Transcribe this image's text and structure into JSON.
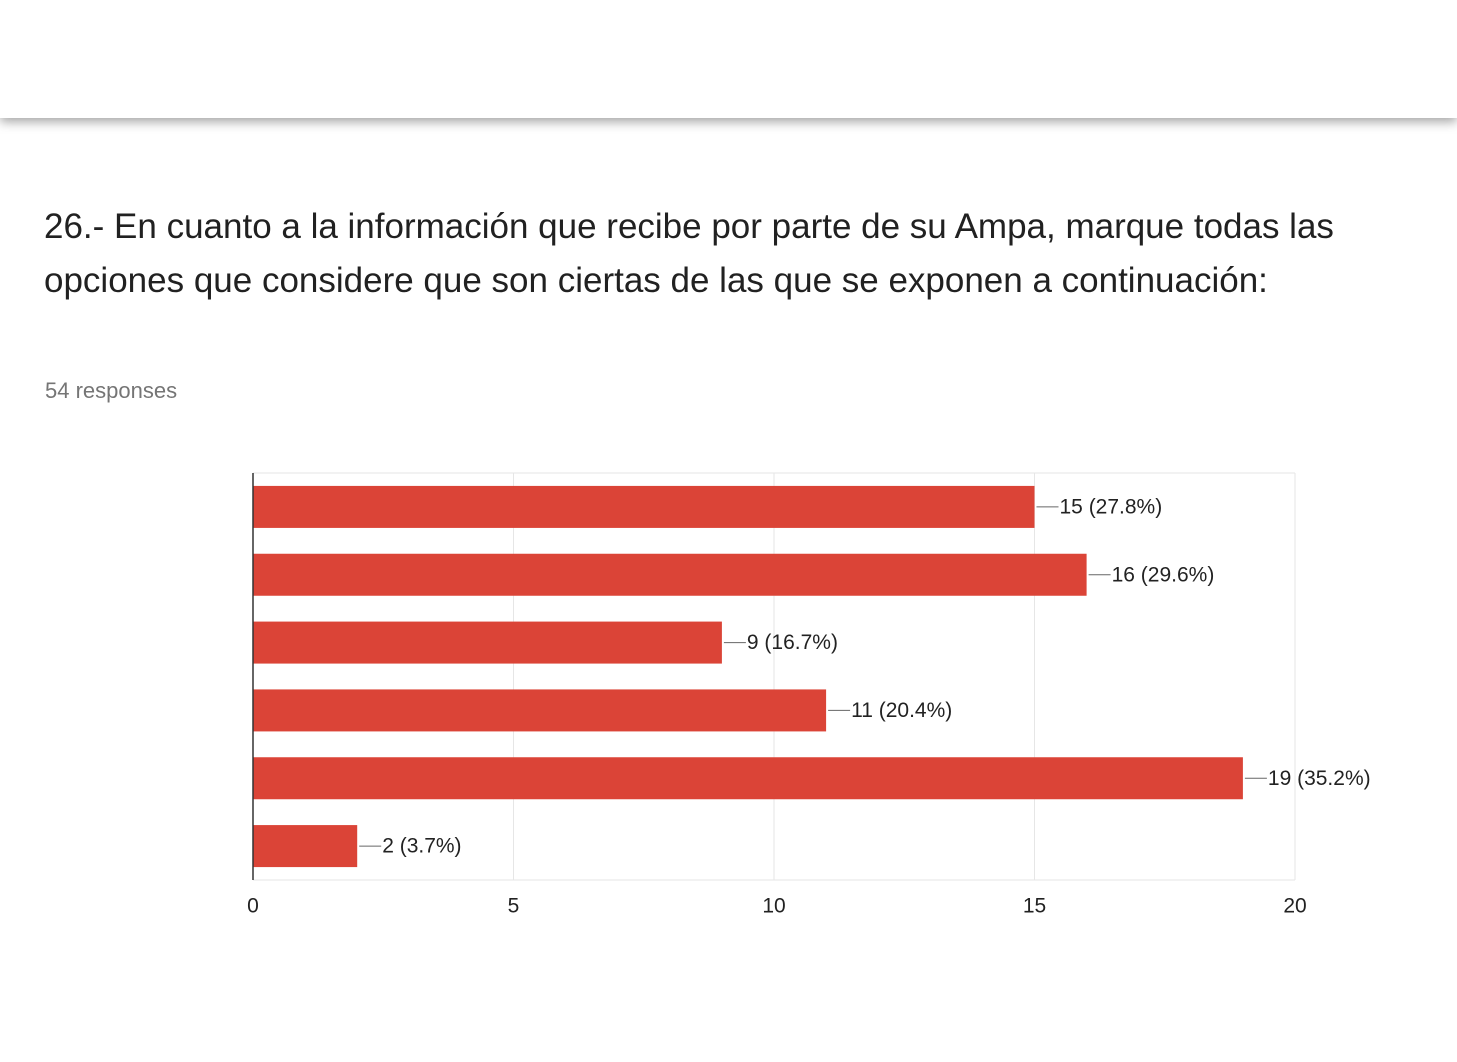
{
  "chart_data": {
    "type": "bar",
    "orientation": "horizontal",
    "title": "26.- En cuanto a la información que recibe por parte de su Ampa, marque todas las opciones que considere que son ciertas de las que se exponen a continuación:",
    "subtitle": "54 responses",
    "categories": [
      null,
      null,
      null,
      null,
      null,
      null
    ],
    "values": [
      15,
      16,
      9,
      11,
      19,
      2
    ],
    "value_labels": [
      "15 (27.8%)",
      "16 (29.6%)",
      "9 (16.7%)",
      "11 (20.4%)",
      "19 (35.2%)",
      "2 (3.7%)"
    ],
    "color": "#db4437",
    "xlim": [
      0,
      20
    ],
    "xticks": [
      0,
      5,
      10,
      15,
      20
    ],
    "grid": true
  }
}
